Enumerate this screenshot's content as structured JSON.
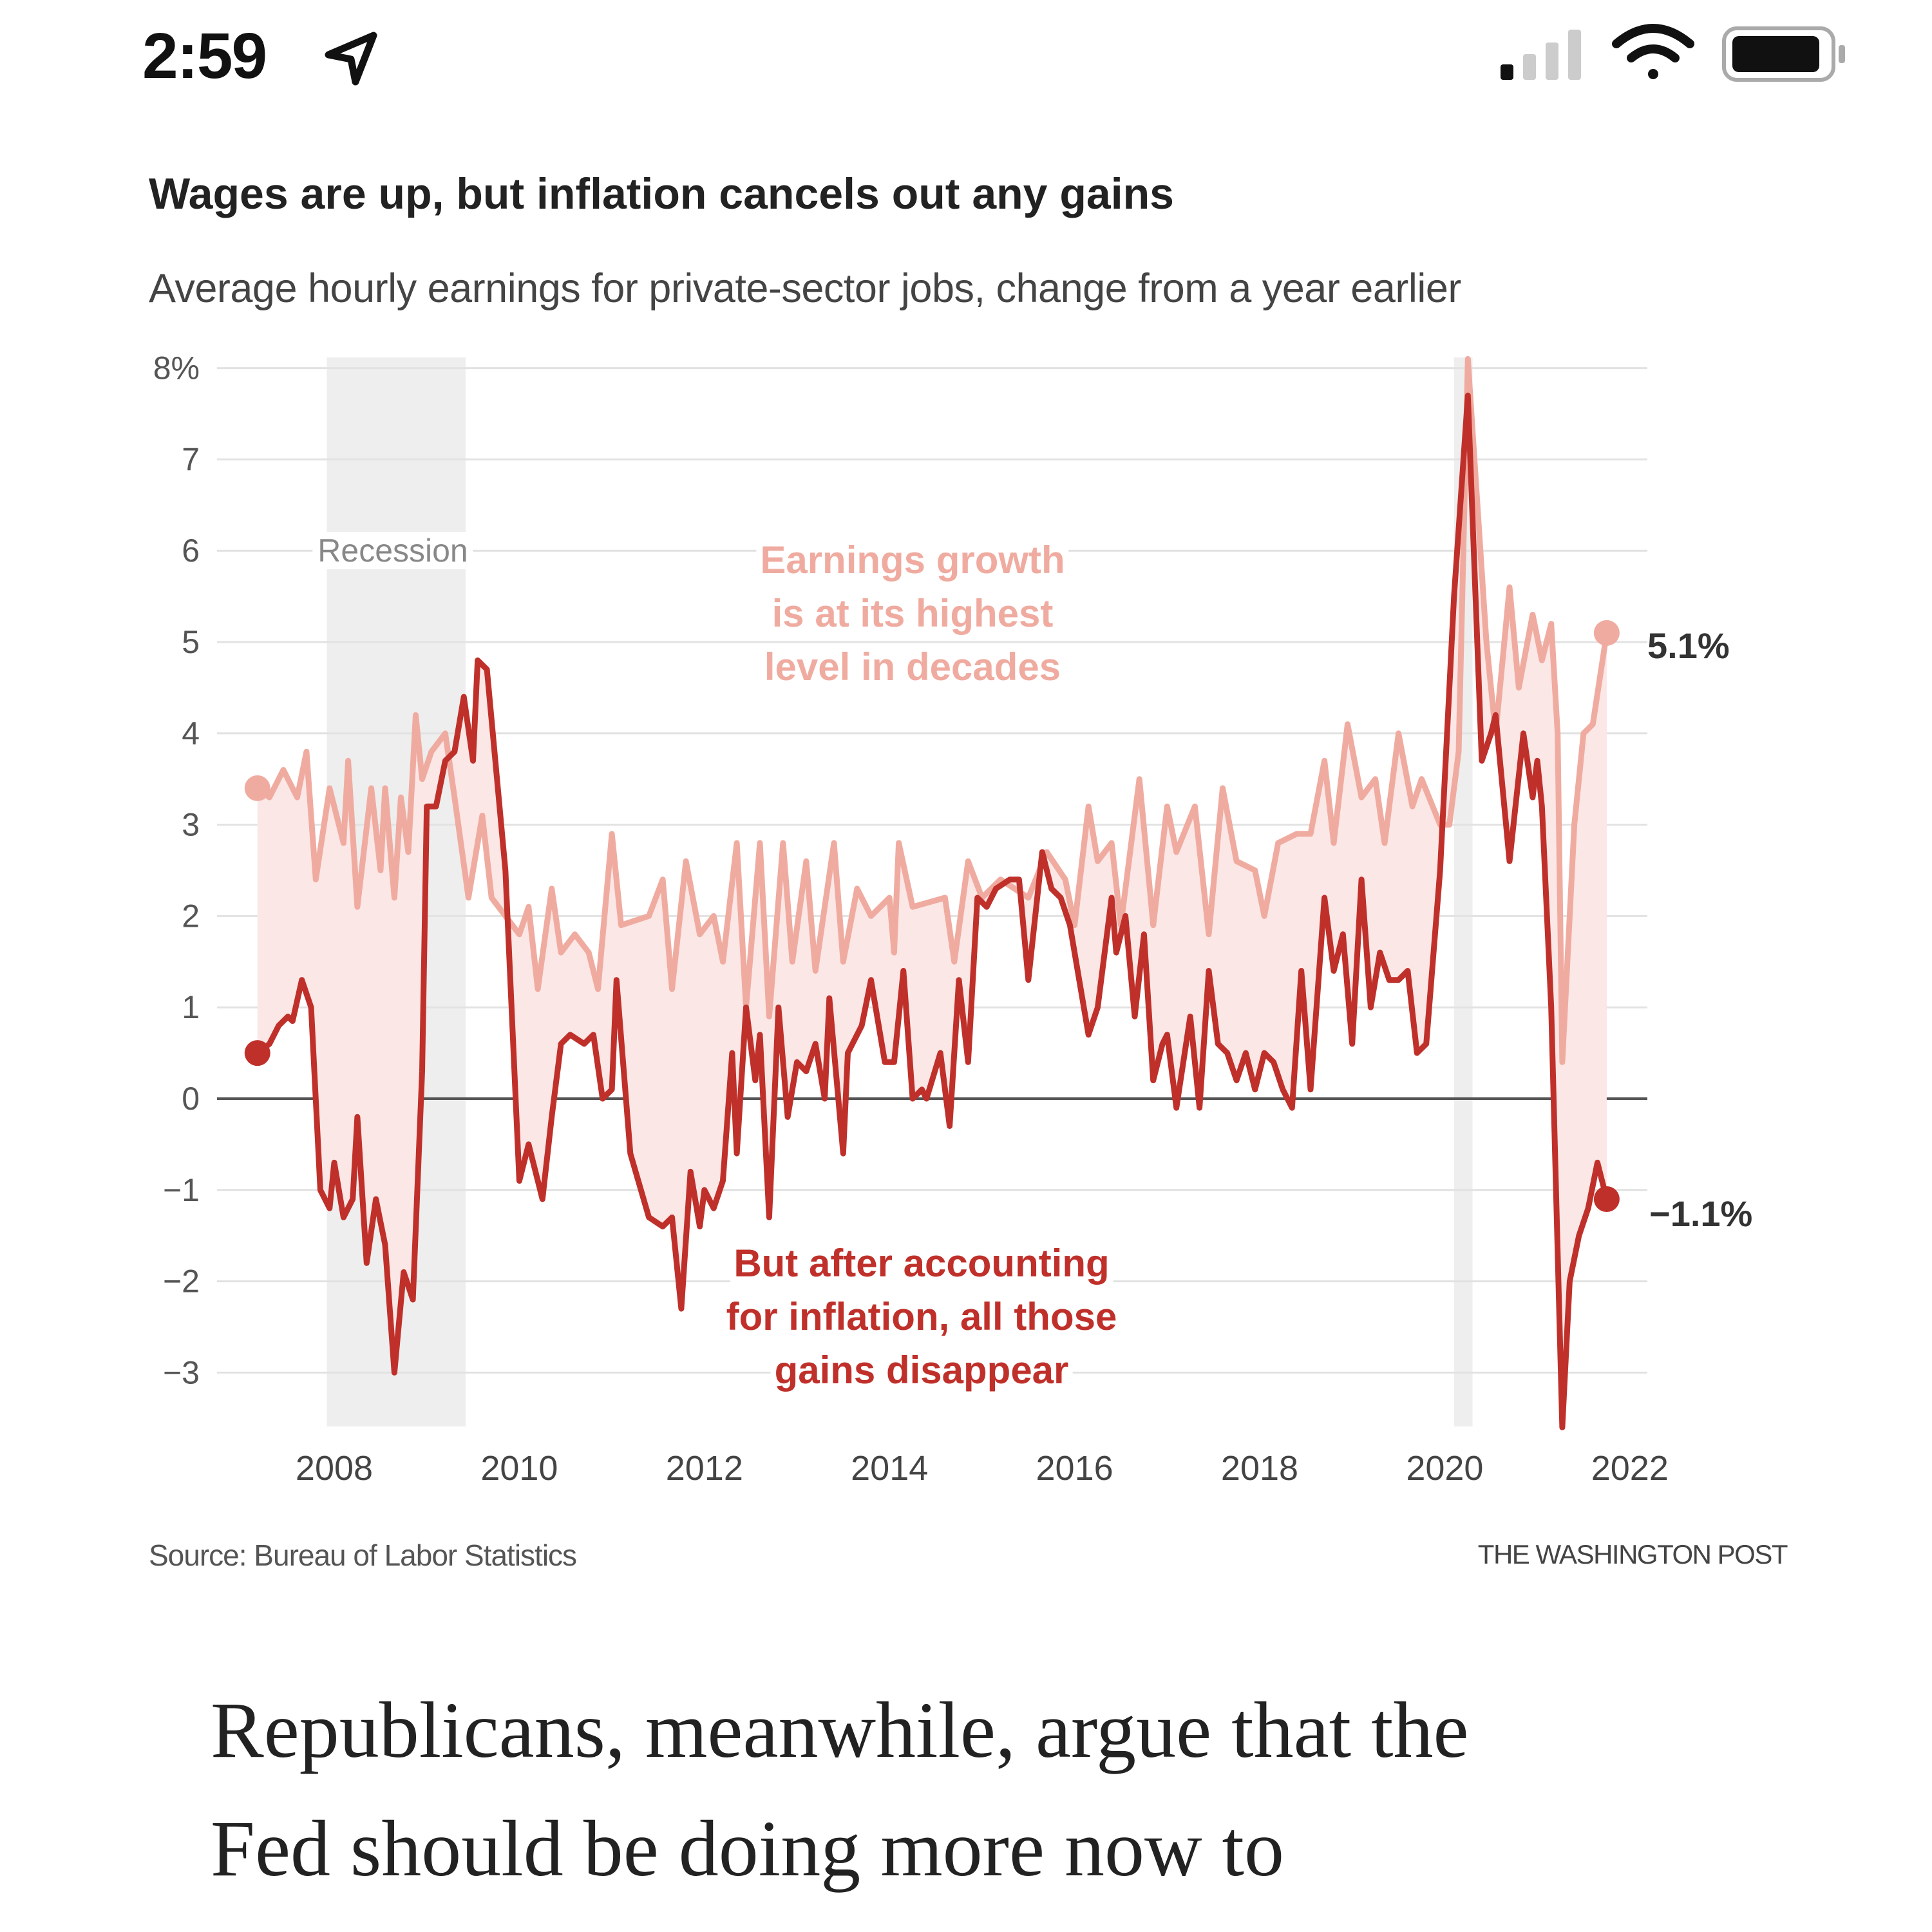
{
  "status_bar": {
    "time": "2:59",
    "icons": [
      "location-arrow-icon",
      "cellular-signal-icon",
      "wifi-icon",
      "battery-icon"
    ]
  },
  "chart_data": {
    "type": "line",
    "title": "Wages are up, but inflation cancels out any gains",
    "subtitle": "Average hourly earnings for private-sector jobs, change from a year earlier",
    "xlabel": "",
    "ylabel": "",
    "ylim": [
      -3.6,
      8.1
    ],
    "xlim": [
      2007,
      2022.3
    ],
    "y_ticks": [
      8,
      7,
      6,
      5,
      4,
      3,
      2,
      1,
      0,
      -1,
      -2,
      -3
    ],
    "y_tick_labels": [
      "8%",
      "7",
      "6",
      "5",
      "4",
      "3",
      "2",
      "1",
      "0",
      "−1",
      "−2",
      "−3"
    ],
    "x_ticks": [
      2008,
      2010,
      2012,
      2014,
      2016,
      2018,
      2020,
      2022
    ],
    "x_tick_labels": [
      "2008",
      "2010",
      "2012",
      "2014",
      "2016",
      "2018",
      "2020",
      "2022"
    ],
    "grid": true,
    "shaded_periods": [
      {
        "label": "Recession",
        "start": 2007.92,
        "end": 2009.42
      },
      {
        "label": "",
        "start": 2020.1,
        "end": 2020.3
      }
    ],
    "colors": {
      "nominal": "#f0aba0",
      "real": "#c0302a",
      "fill": "#fbe7e6",
      "recession": "#eeeeee"
    },
    "series": [
      {
        "key": "nominal",
        "end_label": "5.1%",
        "points": [
          [
            2007.17,
            3.4
          ],
          [
            2007.3,
            3.3
          ],
          [
            2007.45,
            3.6
          ],
          [
            2007.6,
            3.3
          ],
          [
            2007.7,
            3.8
          ],
          [
            2007.8,
            2.4
          ],
          [
            2007.95,
            3.4
          ],
          [
            2008.1,
            2.8
          ],
          [
            2008.15,
            3.7
          ],
          [
            2008.25,
            2.1
          ],
          [
            2008.4,
            3.4
          ],
          [
            2008.5,
            2.5
          ],
          [
            2008.55,
            3.4
          ],
          [
            2008.65,
            2.2
          ],
          [
            2008.72,
            3.3
          ],
          [
            2008.8,
            2.7
          ],
          [
            2008.88,
            4.2
          ],
          [
            2008.95,
            3.5
          ],
          [
            2009.05,
            3.8
          ],
          [
            2009.2,
            4.0
          ],
          [
            2009.3,
            3.3
          ],
          [
            2009.45,
            2.2
          ],
          [
            2009.6,
            3.1
          ],
          [
            2009.7,
            2.2
          ],
          [
            2009.85,
            2.0
          ],
          [
            2010.0,
            1.8
          ],
          [
            2010.1,
            2.1
          ],
          [
            2010.2,
            1.2
          ],
          [
            2010.35,
            2.3
          ],
          [
            2010.45,
            1.6
          ],
          [
            2010.6,
            1.8
          ],
          [
            2010.75,
            1.6
          ],
          [
            2010.85,
            1.2
          ],
          [
            2011.0,
            2.9
          ],
          [
            2011.1,
            1.9
          ],
          [
            2011.4,
            2.0
          ],
          [
            2011.55,
            2.4
          ],
          [
            2011.65,
            1.2
          ],
          [
            2011.8,
            2.6
          ],
          [
            2011.95,
            1.8
          ],
          [
            2012.1,
            2.0
          ],
          [
            2012.2,
            1.5
          ],
          [
            2012.35,
            2.8
          ],
          [
            2012.45,
            1.0
          ],
          [
            2012.6,
            2.8
          ],
          [
            2012.7,
            0.9
          ],
          [
            2012.85,
            2.8
          ],
          [
            2012.95,
            1.5
          ],
          [
            2013.1,
            2.6
          ],
          [
            2013.2,
            1.4
          ],
          [
            2013.4,
            2.8
          ],
          [
            2013.5,
            1.5
          ],
          [
            2013.65,
            2.3
          ],
          [
            2013.8,
            2.0
          ],
          [
            2014.0,
            2.2
          ],
          [
            2014.05,
            1.6
          ],
          [
            2014.1,
            2.8
          ],
          [
            2014.25,
            2.1
          ],
          [
            2014.6,
            2.2
          ],
          [
            2014.7,
            1.5
          ],
          [
            2014.85,
            2.6
          ],
          [
            2015.0,
            2.2
          ],
          [
            2015.2,
            2.4
          ],
          [
            2015.5,
            2.2
          ],
          [
            2015.7,
            2.7
          ],
          [
            2015.9,
            2.4
          ],
          [
            2016.0,
            1.9
          ],
          [
            2016.15,
            3.2
          ],
          [
            2016.25,
            2.6
          ],
          [
            2016.4,
            2.8
          ],
          [
            2016.5,
            1.9
          ],
          [
            2016.7,
            3.5
          ],
          [
            2016.85,
            1.9
          ],
          [
            2017.0,
            3.2
          ],
          [
            2017.1,
            2.7
          ],
          [
            2017.3,
            3.2
          ],
          [
            2017.45,
            1.8
          ],
          [
            2017.6,
            3.4
          ],
          [
            2017.75,
            2.6
          ],
          [
            2017.95,
            2.5
          ],
          [
            2018.05,
            2.0
          ],
          [
            2018.2,
            2.8
          ],
          [
            2018.4,
            2.9
          ],
          [
            2018.55,
            2.9
          ],
          [
            2018.7,
            3.7
          ],
          [
            2018.8,
            2.8
          ],
          [
            2018.95,
            4.1
          ],
          [
            2019.1,
            3.3
          ],
          [
            2019.25,
            3.5
          ],
          [
            2019.35,
            2.8
          ],
          [
            2019.5,
            4.0
          ],
          [
            2019.65,
            3.2
          ],
          [
            2019.75,
            3.5
          ],
          [
            2019.95,
            3.0
          ],
          [
            2020.05,
            3.0
          ],
          [
            2020.15,
            3.8
          ],
          [
            2020.25,
            8.1
          ],
          [
            2020.45,
            5.0
          ],
          [
            2020.55,
            4.0
          ],
          [
            2020.7,
            5.6
          ],
          [
            2020.8,
            4.5
          ],
          [
            2020.95,
            5.3
          ],
          [
            2021.05,
            4.8
          ],
          [
            2021.15,
            5.2
          ],
          [
            2021.22,
            4.0
          ],
          [
            2021.27,
            0.4
          ],
          [
            2021.4,
            3.0
          ],
          [
            2021.5,
            4.0
          ],
          [
            2021.6,
            4.1
          ],
          [
            2021.75,
            5.1
          ]
        ]
      },
      {
        "key": "real",
        "end_label": "−1.1%",
        "points": [
          [
            2007.17,
            0.5
          ],
          [
            2007.3,
            0.6
          ],
          [
            2007.4,
            0.8
          ],
          [
            2007.5,
            0.9
          ],
          [
            2007.55,
            0.85
          ],
          [
            2007.65,
            1.3
          ],
          [
            2007.75,
            1.0
          ],
          [
            2007.85,
            -1.0
          ],
          [
            2007.95,
            -1.2
          ],
          [
            2008.0,
            -0.7
          ],
          [
            2008.1,
            -1.3
          ],
          [
            2008.2,
            -1.1
          ],
          [
            2008.25,
            -0.2
          ],
          [
            2008.35,
            -1.8
          ],
          [
            2008.45,
            -1.1
          ],
          [
            2008.55,
            -1.6
          ],
          [
            2008.65,
            -3.0
          ],
          [
            2008.75,
            -1.9
          ],
          [
            2008.85,
            -2.2
          ],
          [
            2008.95,
            0.3
          ],
          [
            2009.0,
            3.2
          ],
          [
            2009.1,
            3.2
          ],
          [
            2009.2,
            3.7
          ],
          [
            2009.3,
            3.8
          ],
          [
            2009.4,
            4.4
          ],
          [
            2009.5,
            3.7
          ],
          [
            2009.55,
            4.8
          ],
          [
            2009.65,
            4.7
          ],
          [
            2009.85,
            2.5
          ],
          [
            2010.0,
            -0.9
          ],
          [
            2010.1,
            -0.5
          ],
          [
            2010.25,
            -1.1
          ],
          [
            2010.35,
            -0.2
          ],
          [
            2010.45,
            0.6
          ],
          [
            2010.55,
            0.7
          ],
          [
            2010.7,
            0.6
          ],
          [
            2010.8,
            0.7
          ],
          [
            2010.9,
            0.0
          ],
          [
            2011.0,
            0.1
          ],
          [
            2011.05,
            1.3
          ],
          [
            2011.2,
            -0.6
          ],
          [
            2011.4,
            -1.3
          ],
          [
            2011.55,
            -1.4
          ],
          [
            2011.65,
            -1.3
          ],
          [
            2011.75,
            -2.3
          ],
          [
            2011.85,
            -0.8
          ],
          [
            2011.95,
            -1.4
          ],
          [
            2012.0,
            -1.0
          ],
          [
            2012.1,
            -1.2
          ],
          [
            2012.2,
            -0.9
          ],
          [
            2012.3,
            0.5
          ],
          [
            2012.35,
            -0.6
          ],
          [
            2012.45,
            1.0
          ],
          [
            2012.55,
            0.2
          ],
          [
            2012.6,
            0.7
          ],
          [
            2012.7,
            -1.3
          ],
          [
            2012.8,
            1.0
          ],
          [
            2012.9,
            -0.2
          ],
          [
            2013.0,
            0.4
          ],
          [
            2013.1,
            0.3
          ],
          [
            2013.2,
            0.6
          ],
          [
            2013.3,
            0.0
          ],
          [
            2013.35,
            1.1
          ],
          [
            2013.5,
            -0.6
          ],
          [
            2013.55,
            0.5
          ],
          [
            2013.7,
            0.8
          ],
          [
            2013.8,
            1.3
          ],
          [
            2013.95,
            0.4
          ],
          [
            2014.05,
            0.4
          ],
          [
            2014.15,
            1.4
          ],
          [
            2014.25,
            0.0
          ],
          [
            2014.35,
            0.1
          ],
          [
            2014.4,
            0.0
          ],
          [
            2014.55,
            0.5
          ],
          [
            2014.65,
            -0.3
          ],
          [
            2014.75,
            1.3
          ],
          [
            2014.85,
            0.4
          ],
          [
            2014.95,
            2.2
          ],
          [
            2015.05,
            2.1
          ],
          [
            2015.15,
            2.3
          ],
          [
            2015.3,
            2.4
          ],
          [
            2015.4,
            2.4
          ],
          [
            2015.5,
            1.3
          ],
          [
            2015.65,
            2.7
          ],
          [
            2015.75,
            2.3
          ],
          [
            2015.85,
            2.2
          ],
          [
            2015.95,
            1.9
          ],
          [
            2016.05,
            1.3
          ],
          [
            2016.15,
            0.7
          ],
          [
            2016.25,
            1.0
          ],
          [
            2016.4,
            2.2
          ],
          [
            2016.45,
            1.6
          ],
          [
            2016.55,
            2.0
          ],
          [
            2016.65,
            0.9
          ],
          [
            2016.75,
            1.8
          ],
          [
            2016.85,
            0.2
          ],
          [
            2016.95,
            0.6
          ],
          [
            2017.0,
            0.7
          ],
          [
            2017.1,
            -0.1
          ],
          [
            2017.25,
            0.9
          ],
          [
            2017.35,
            -0.1
          ],
          [
            2017.45,
            1.4
          ],
          [
            2017.55,
            0.6
          ],
          [
            2017.65,
            0.5
          ],
          [
            2017.75,
            0.2
          ],
          [
            2017.85,
            0.5
          ],
          [
            2017.95,
            0.1
          ],
          [
            2018.05,
            0.5
          ],
          [
            2018.15,
            0.4
          ],
          [
            2018.25,
            0.1
          ],
          [
            2018.35,
            -0.1
          ],
          [
            2018.45,
            1.4
          ],
          [
            2018.55,
            0.1
          ],
          [
            2018.7,
            2.2
          ],
          [
            2018.8,
            1.4
          ],
          [
            2018.9,
            1.8
          ],
          [
            2019.0,
            0.6
          ],
          [
            2019.1,
            2.4
          ],
          [
            2019.2,
            1.0
          ],
          [
            2019.3,
            1.6
          ],
          [
            2019.4,
            1.3
          ],
          [
            2019.5,
            1.3
          ],
          [
            2019.6,
            1.4
          ],
          [
            2019.7,
            0.5
          ],
          [
            2019.8,
            0.6
          ],
          [
            2019.95,
            2.5
          ],
          [
            2020.1,
            5.5
          ],
          [
            2020.25,
            7.7
          ],
          [
            2020.4,
            3.7
          ],
          [
            2020.5,
            4.0
          ],
          [
            2020.55,
            4.2
          ],
          [
            2020.7,
            2.6
          ],
          [
            2020.85,
            4.0
          ],
          [
            2020.95,
            3.3
          ],
          [
            2021.0,
            3.7
          ],
          [
            2021.05,
            3.2
          ],
          [
            2021.15,
            1.0
          ],
          [
            2021.27,
            -3.6
          ],
          [
            2021.35,
            -2.0
          ],
          [
            2021.45,
            -1.5
          ],
          [
            2021.55,
            -1.2
          ],
          [
            2021.65,
            -0.7
          ],
          [
            2021.75,
            -1.1
          ]
        ]
      }
    ],
    "annotations": {
      "recession": "Recession",
      "nominal": [
        "Earnings growth",
        "is at its highest",
        "level in decades"
      ],
      "real": [
        "But after accounting",
        "for inflation, all those",
        "gains disappear"
      ]
    },
    "source": "Source: Bureau of Labor Statistics",
    "credit": "THE WASHINGTON POST"
  },
  "article": {
    "lines": [
      "Republicans, meanwhile, argue that the",
      "Fed should be doing more now to"
    ]
  }
}
